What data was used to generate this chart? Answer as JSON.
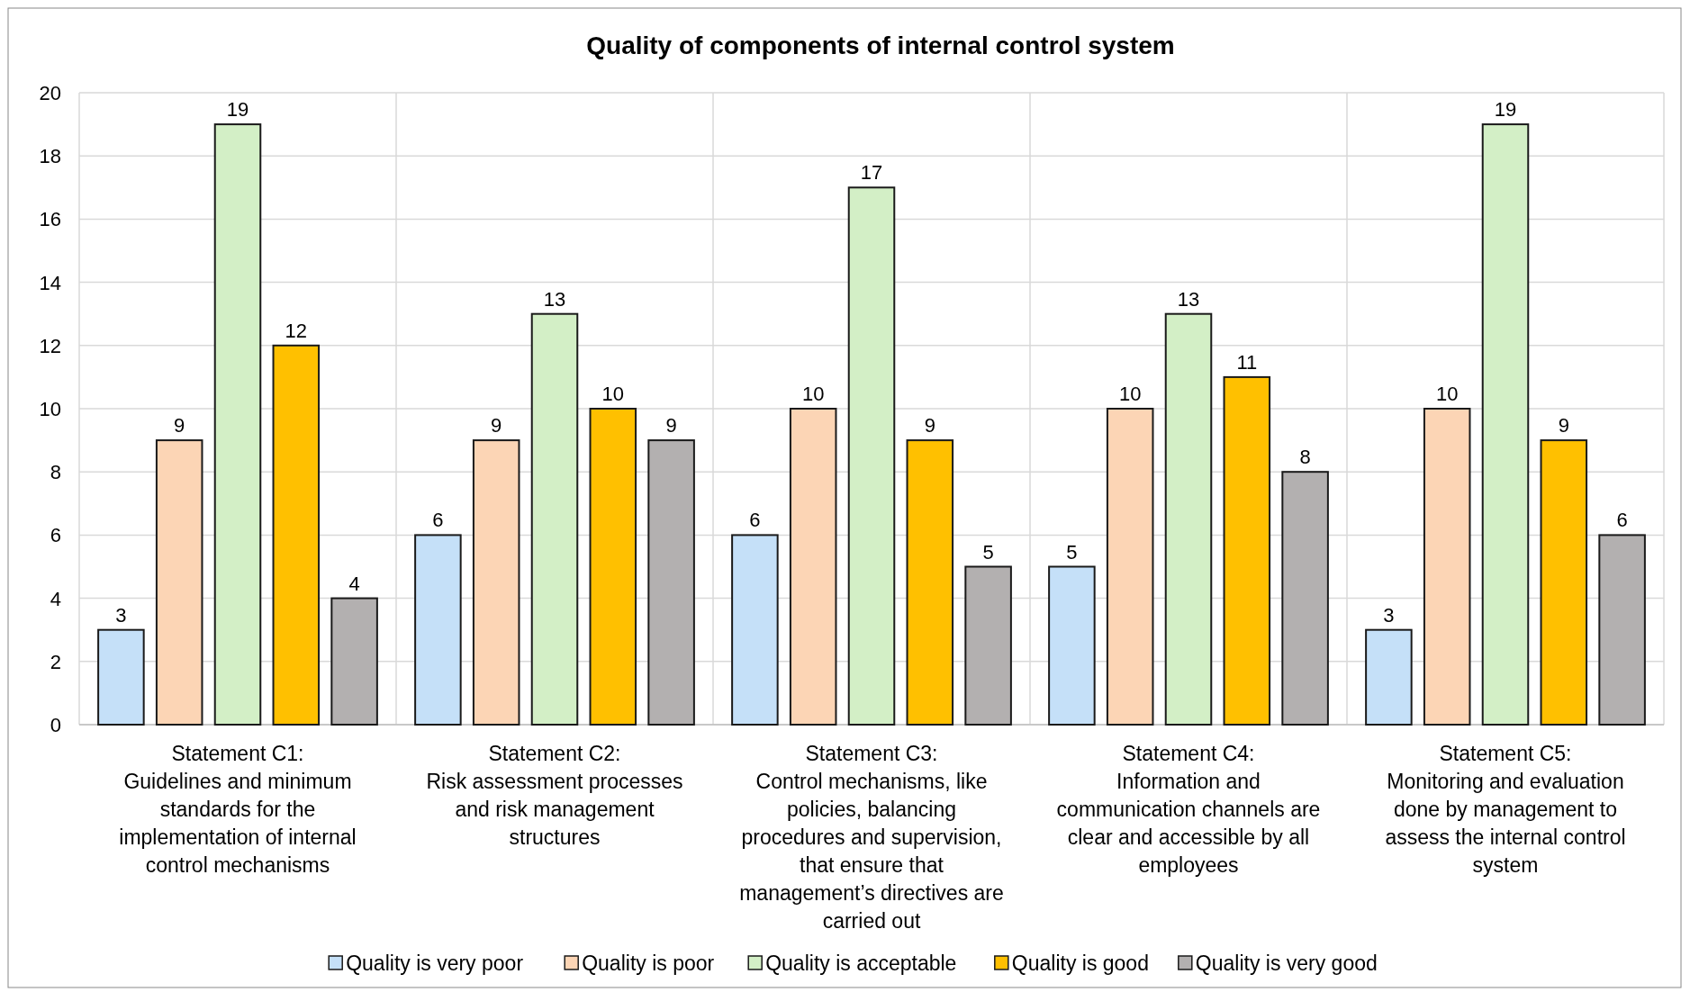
{
  "chart_data": {
    "type": "bar",
    "title": "Quality of components of internal control system",
    "categories": [
      "Statement C1:\nGuidelines and minimum standards for the implementation of internal control mechanisms",
      "Statement C2:\nRisk assessment processes and risk management structures",
      "Statement C3:\nControl mechanisms, like policies, balancing procedures and supervision, that ensure that management’s directives are carried out",
      "Statement C4:\nInformation and communication channels are clear and accessible by all employees",
      "Statement C5:\nMonitoring and evaluation done by management to assess the internal control system"
    ],
    "series": [
      {
        "name": "Quality is very poor",
        "color": "#c5e0f8",
        "values": [
          3,
          6,
          6,
          5,
          3
        ]
      },
      {
        "name": "Quality is poor",
        "color": "#fcd5b5",
        "values": [
          9,
          9,
          10,
          10,
          10
        ]
      },
      {
        "name": "Quality is acceptable",
        "color": "#d3efc6",
        "values": [
          19,
          13,
          17,
          13,
          19
        ]
      },
      {
        "name": "Quality is good",
        "color": "#ffc000",
        "values": [
          12,
          10,
          9,
          11,
          9
        ]
      },
      {
        "name": "Quality is very good",
        "color": "#b3b0b0",
        "values": [
          4,
          9,
          5,
          8,
          6
        ]
      }
    ],
    "ylim": [
      0,
      20
    ],
    "yticks": [
      0,
      2,
      4,
      6,
      8,
      10,
      12,
      14,
      16,
      18,
      20
    ],
    "grid": true,
    "legend": "bottom",
    "data_labels": true
  }
}
